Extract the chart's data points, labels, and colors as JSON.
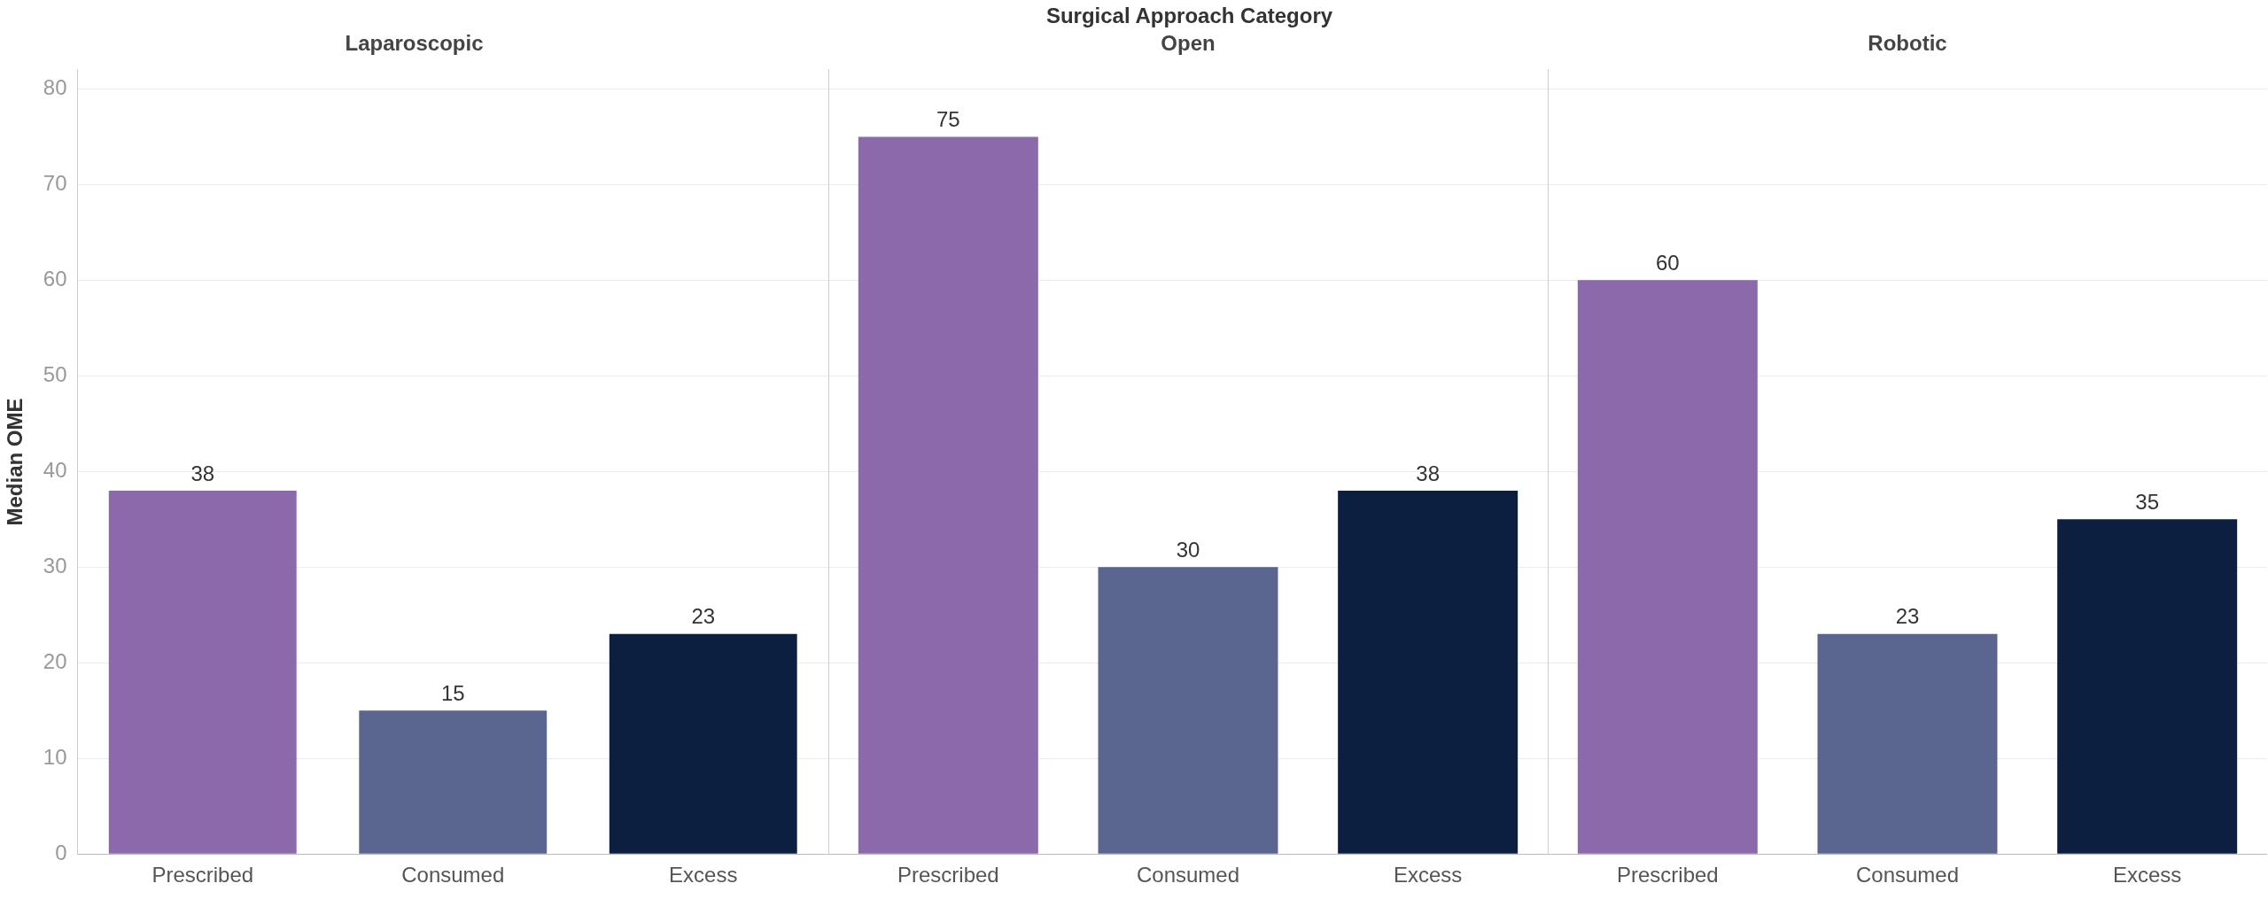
{
  "chart_data": [
    {
      "type": "bar",
      "title": "Laparoscopic",
      "ylabel": "Median OME",
      "categories": [
        "Prescribed",
        "Consumed",
        "Excess"
      ],
      "values": [
        38,
        15,
        23
      ],
      "colors": [
        "#8b69ab",
        "#5a6590",
        "#0c1f40"
      ],
      "ylim": [
        0,
        82
      ],
      "yticks": [
        0,
        10,
        20,
        30,
        40,
        50,
        60,
        70,
        80
      ],
      "grid": "y",
      "data_labels": true,
      "annotations": [
        "Surgical Approach Category"
      ]
    },
    {
      "type": "bar",
      "title": "Open",
      "categories": [
        "Prescribed",
        "Consumed",
        "Excess"
      ],
      "values": [
        75,
        30,
        38
      ],
      "colors": [
        "#8b69ab",
        "#5a6590",
        "#0c1f40"
      ],
      "ylim": [
        0,
        82
      ],
      "yticks": [
        0,
        10,
        20,
        30,
        40,
        50,
        60,
        70,
        80
      ],
      "grid": "y",
      "data_labels": true,
      "tick_labels": "x"
    },
    {
      "type": "bar",
      "title": "Robotic",
      "categories": [
        "Prescribed",
        "Consumed",
        "Excess"
      ],
      "values": [
        60,
        23,
        35
      ],
      "colors": [
        "#8b69ab",
        "#5a6590",
        "#0c1f40"
      ],
      "ylim": [
        0,
        82
      ],
      "yticks": [
        0,
        10,
        20,
        30,
        40,
        50,
        60,
        70,
        80
      ],
      "grid": "y",
      "data_labels": true,
      "tick_labels": "x"
    }
  ]
}
